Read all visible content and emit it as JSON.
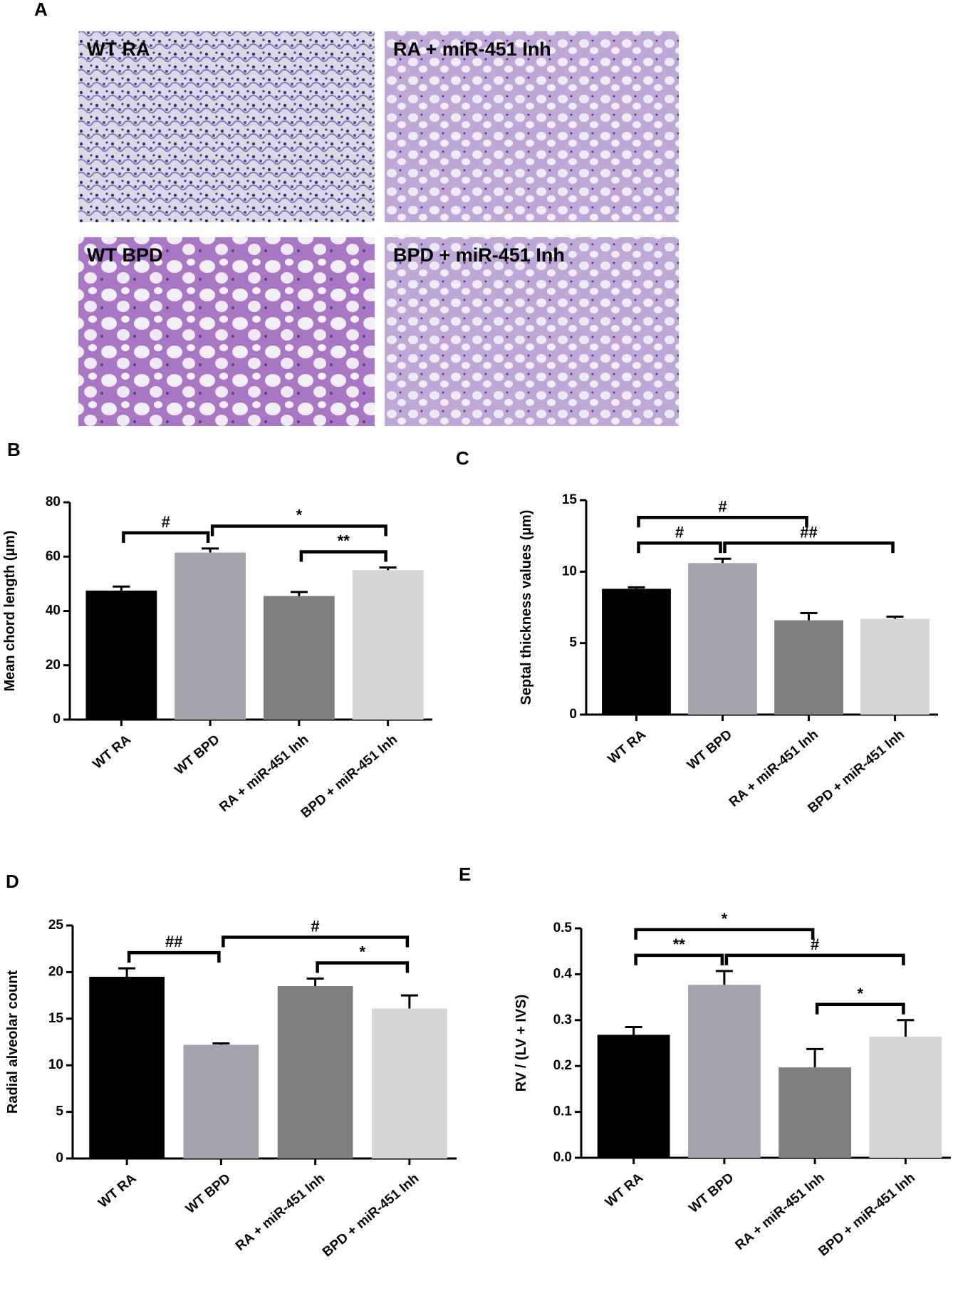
{
  "panel_a": {
    "label": "A",
    "images": [
      "WT RA",
      "RA + miR-451 Inh",
      "WT BPD",
      "BPD + miR-451 Inh"
    ]
  },
  "chart_data": [
    {
      "type": "bar",
      "panel_label": "B",
      "y_label": "Mean chord length (µm)",
      "categories": [
        "WT RA",
        "WT BPD",
        "RA + miR-451 Inh",
        "BPD + miR-451 Inh"
      ],
      "values": [
        47.5,
        61.5,
        45.5,
        55
      ],
      "errors": [
        1.5,
        1.5,
        1.5,
        1
      ],
      "colors": [
        "#000000",
        "#a5a4ae",
        "#7f7f7f",
        "#d6d6d6"
      ],
      "ylim": [
        0,
        80
      ],
      "yticks": [
        0,
        20,
        40,
        60,
        80
      ],
      "annotations": [
        {
          "text": "#",
          "from": 0,
          "to": 1
        },
        {
          "text": "**",
          "from": 2,
          "to": 3
        },
        {
          "text": "*",
          "from": 1,
          "to": 3
        }
      ]
    },
    {
      "type": "bar",
      "panel_label": "C",
      "y_label": "Septal thickness values (µm)",
      "categories": [
        "WT RA",
        "WT BPD",
        "RA + miR-451 Inh",
        "BPD + miR-451 Inh"
      ],
      "values": [
        8.8,
        10.6,
        6.6,
        6.7
      ],
      "errors": [
        0.1,
        0.3,
        0.5,
        0.15
      ],
      "colors": [
        "#000000",
        "#a5a4ae",
        "#7f7f7f",
        "#d6d6d6"
      ],
      "ylim": [
        0,
        15
      ],
      "yticks": [
        0,
        5,
        10,
        15
      ],
      "annotations": [
        {
          "text": "#",
          "from": 0,
          "to": 1
        },
        {
          "text": "##",
          "from": 1,
          "to": 3
        },
        {
          "text": "#",
          "from": 0,
          "to": 2
        }
      ]
    },
    {
      "type": "bar",
      "panel_label": "D",
      "y_label": "Radial alveolar count",
      "categories": [
        "WT RA",
        "WT BPD",
        "RA + miR-451 Inh",
        "BPD + miR-451 Inh"
      ],
      "values": [
        19.5,
        12.2,
        18.5,
        16.1
      ],
      "errors": [
        0.9,
        0.15,
        0.8,
        1.4
      ],
      "colors": [
        "#000000",
        "#a5a4ae",
        "#7f7f7f",
        "#d6d6d6"
      ],
      "ylim": [
        0,
        25
      ],
      "yticks": [
        0,
        5,
        10,
        15,
        20,
        25
      ],
      "annotations": [
        {
          "text": "##",
          "from": 0,
          "to": 1
        },
        {
          "text": "*",
          "from": 2,
          "to": 3
        },
        {
          "text": "#",
          "from": 1,
          "to": 3
        }
      ]
    },
    {
      "type": "bar",
      "panel_label": "E",
      "y_label": "RV / (LV + IVS)",
      "categories": [
        "WT RA",
        "WT BPD",
        "RA + miR-451 Inh",
        "BPD + miR-451 Inh"
      ],
      "values": [
        0.268,
        0.377,
        0.197,
        0.264
      ],
      "errors": [
        0.017,
        0.03,
        0.04,
        0.036
      ],
      "colors": [
        "#000000",
        "#a5a4ae",
        "#7f7f7f",
        "#d6d6d6"
      ],
      "ylim": [
        0,
        0.5
      ],
      "yticks": [
        {
          "value": 0,
          "label": "0.0"
        },
        0.1,
        0.2,
        0.3,
        0.4,
        {
          "value": 0.5,
          "label": "0.5"
        }
      ],
      "annotations": [
        {
          "text": "**",
          "from": 0,
          "to": 1
        },
        {
          "text": "*",
          "from": 2,
          "to": 3
        },
        {
          "text": "#",
          "from": 1,
          "to": 3
        },
        {
          "text": "*",
          "from": 0,
          "to": 2
        }
      ]
    }
  ]
}
